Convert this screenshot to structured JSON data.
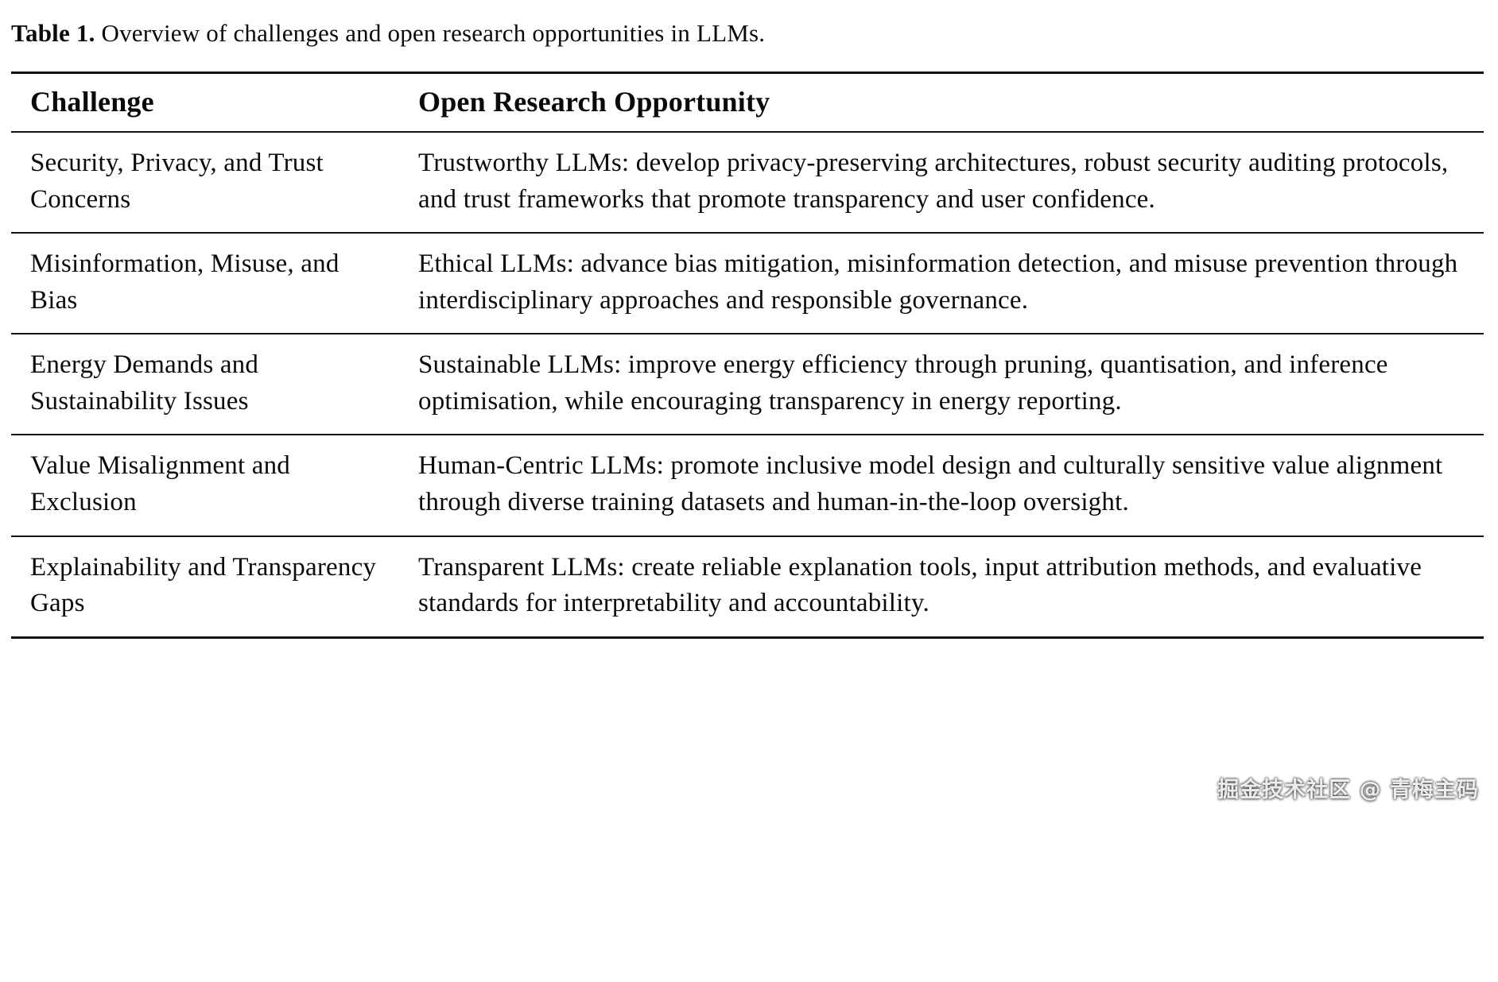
{
  "caption": {
    "label": "Table 1.",
    "text": " Overview of challenges and open research opportunities in LLMs."
  },
  "table": {
    "headers": [
      "Challenge",
      "Open Research Opportunity"
    ],
    "rows": [
      {
        "challenge": "Security, Privacy, and Trust Concerns",
        "opportunity": "Trustworthy LLMs: develop privacy-preserving architectures, robust security auditing protocols, and trust frameworks that promote transparency and user confidence."
      },
      {
        "challenge": "Misinformation, Misuse, and Bias",
        "opportunity": "Ethical LLMs: advance bias mitigation, misinformation detection, and misuse prevention through interdisciplinary approaches and responsible governance."
      },
      {
        "challenge": "Energy Demands and Sustainability Issues",
        "opportunity": "Sustainable LLMs: improve energy efficiency through pruning, quantisation, and inference optimisation, while encouraging transparency in energy reporting."
      },
      {
        "challenge": "Value Misalignment and Exclusion",
        "opportunity": "Human-Centric LLMs: promote inclusive model design and culturally sensitive value alignment through diverse training datasets and human-in-the-loop oversight."
      },
      {
        "challenge": "Explainability and Transparency Gaps",
        "opportunity": "Transparent LLMs: create reliable explanation tools, input attribution methods, and evaluative standards for interpretability and accountability."
      }
    ]
  },
  "watermark": "掘金技术社区 @ 青梅主码"
}
